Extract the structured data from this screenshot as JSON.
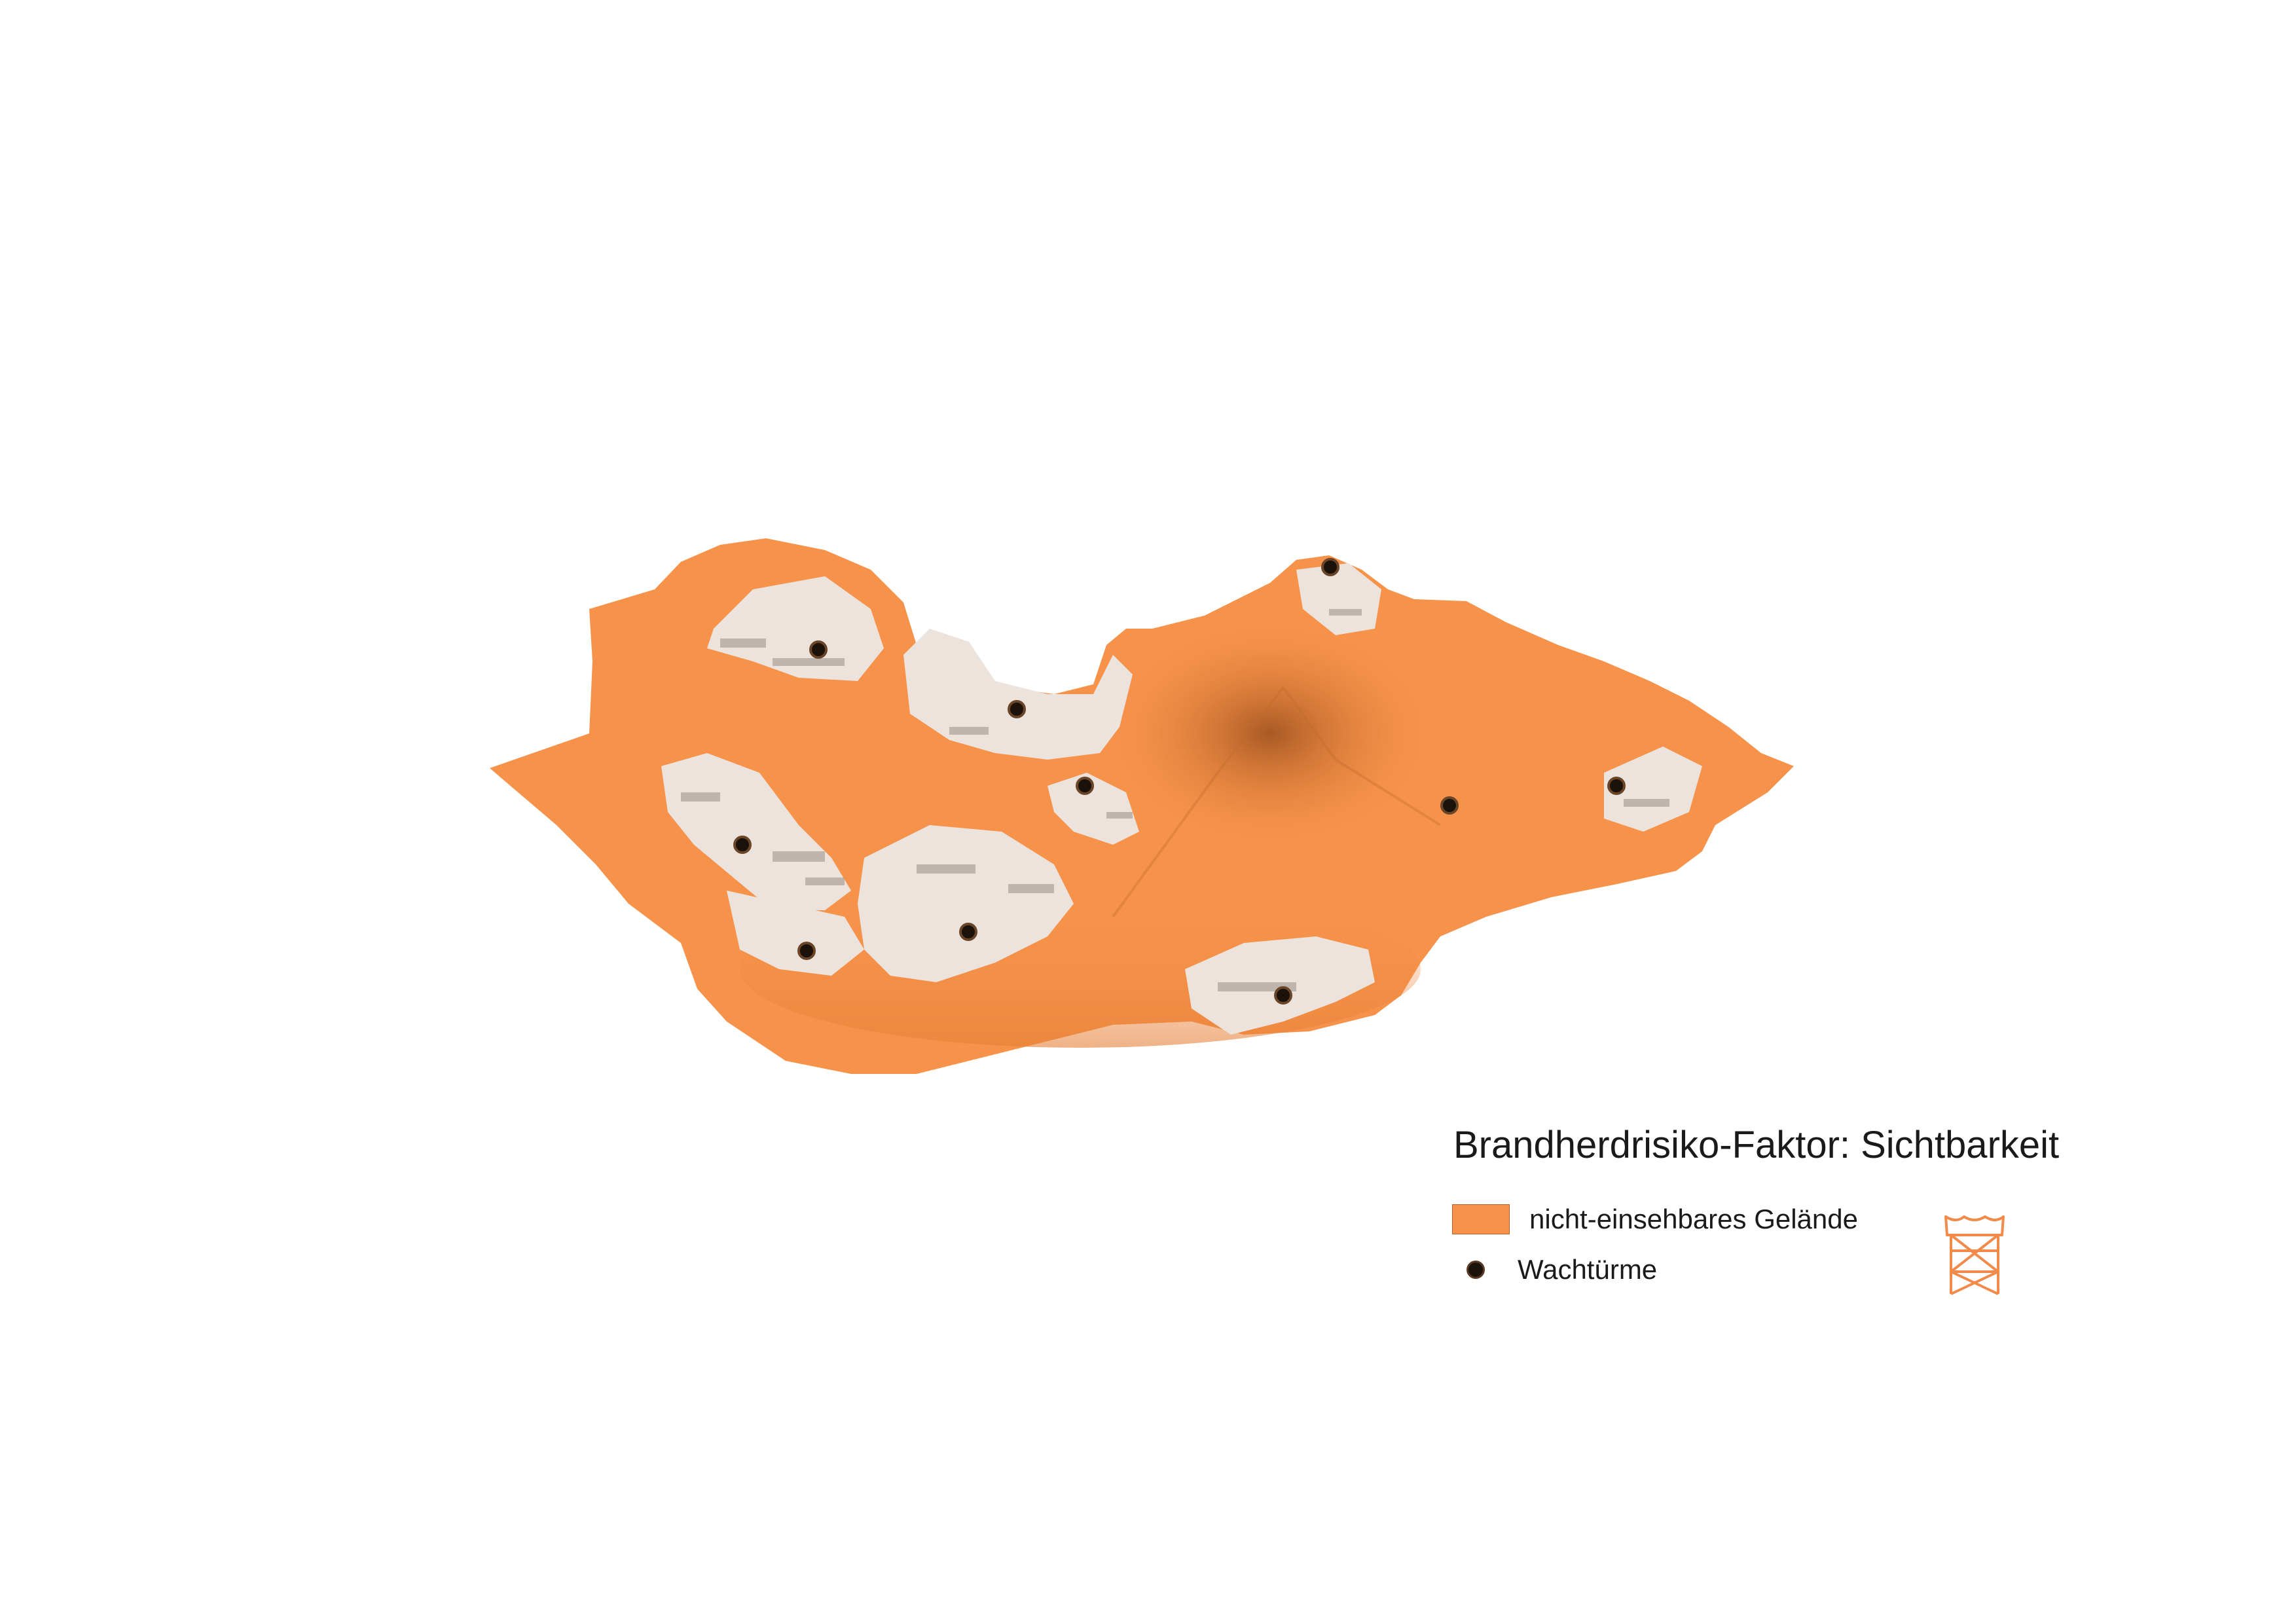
{
  "legend": {
    "title": "Brandherdrisiko-Faktor: Sichtbarkeit",
    "area_label": "nicht-einsehbares Gelände",
    "towers_label": "Wachtürme"
  },
  "colors": {
    "not_visible_terrain": "#f7924a",
    "visible_terrain": "#ece3dc",
    "relief_shadow": "#b86a30",
    "tower_point": "#1b120c",
    "tower_icon": "#f28a49"
  },
  "icons": {
    "legend_icon": "watchtower-icon"
  },
  "features": {
    "watchtower_count": 10
  }
}
